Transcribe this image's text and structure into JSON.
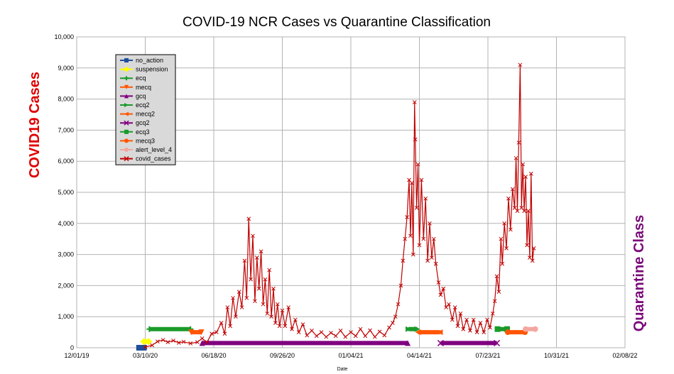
{
  "chart_data": {
    "type": "line",
    "title": "COVID-19 NCR Cases vs Quarantine Classification",
    "xlabel": "Date",
    "ylabel": "COVID19 Cases",
    "y2label": "Quarantine Class",
    "x_range": [
      "2019-12-01",
      "2022-02-08"
    ],
    "ylim": [
      0,
      10000
    ],
    "x_ticks": [
      "12/01/19",
      "03/10/20",
      "06/18/20",
      "09/26/20",
      "01/04/21",
      "04/14/21",
      "07/23/21",
      "10/31/21",
      "02/08/22"
    ],
    "y_ticks": [
      "0",
      "1,000",
      "2,000",
      "3,000",
      "4,000",
      "5,000",
      "6,000",
      "7,000",
      "8,000",
      "9,000",
      "10,000"
    ],
    "grid": true,
    "legend_position": "top-left",
    "legend": [
      "no_action",
      "suspension",
      "ecq",
      "mecq",
      "gcq",
      "ecq2",
      "mecq2",
      "gcq2",
      "ecq3",
      "mecq3",
      "alert_level_4",
      "covid_cases"
    ],
    "quarantine_series": [
      {
        "name": "no_action",
        "color": "#1f4e9c",
        "marker": "square",
        "start": "2020-03-01",
        "end": "2020-03-08",
        "level": 0
      },
      {
        "name": "suspension",
        "color": "#ffff00",
        "marker": "diamond",
        "start": "2020-03-08",
        "end": "2020-03-15",
        "level": 200
      },
      {
        "name": "ecq",
        "color": "#1a9a2a",
        "marker": "plus",
        "start": "2020-03-16",
        "end": "2020-05-15",
        "level": 600
      },
      {
        "name": "mecq",
        "color": "#ff5500",
        "marker": "triangle-down",
        "start": "2020-05-16",
        "end": "2020-05-31",
        "level": 500
      },
      {
        "name": "gcq",
        "color": "#800080",
        "marker": "triangle-up",
        "start": "2020-06-01",
        "end": "2021-03-28",
        "level": 150
      },
      {
        "name": "ecq2",
        "color": "#1a9a2a",
        "marker": "triangle-right",
        "start": "2021-03-29",
        "end": "2021-04-11",
        "level": 600
      },
      {
        "name": "mecq2",
        "color": "#ff5500",
        "marker": "triangle-left",
        "start": "2021-04-12",
        "end": "2021-05-14",
        "level": 500
      },
      {
        "name": "gcq2",
        "color": "#800080",
        "marker": "x",
        "start": "2021-05-15",
        "end": "2021-08-05",
        "level": 150
      },
      {
        "name": "ecq3",
        "color": "#1a9a2a",
        "marker": "square",
        "start": "2021-08-06",
        "end": "2021-08-20",
        "level": 600
      },
      {
        "name": "mecq3",
        "color": "#ff5500",
        "marker": "circle",
        "start": "2021-08-21",
        "end": "2021-09-15",
        "level": 500
      },
      {
        "name": "alert_level_4",
        "color": "#f4a6a0",
        "marker": "star",
        "start": "2021-09-16",
        "end": "2021-09-30",
        "level": 600
      }
    ],
    "covid_cases": {
      "name": "covid_cases",
      "color": "#c00000",
      "marker": "x",
      "points": [
        [
          "2020-03-10",
          20
        ],
        [
          "2020-03-20",
          80
        ],
        [
          "2020-03-28",
          200
        ],
        [
          "2020-04-05",
          250
        ],
        [
          "2020-04-12",
          180
        ],
        [
          "2020-04-20",
          230
        ],
        [
          "2020-04-28",
          160
        ],
        [
          "2020-05-05",
          190
        ],
        [
          "2020-05-15",
          140
        ],
        [
          "2020-05-25",
          180
        ],
        [
          "2020-06-01",
          300
        ],
        [
          "2020-06-08",
          180
        ],
        [
          "2020-06-15",
          450
        ],
        [
          "2020-06-22",
          500
        ],
        [
          "2020-06-29",
          800
        ],
        [
          "2020-07-04",
          450
        ],
        [
          "2020-07-08",
          1300
        ],
        [
          "2020-07-12",
          700
        ],
        [
          "2020-07-16",
          1600
        ],
        [
          "2020-07-20",
          1000
        ],
        [
          "2020-07-25",
          1800
        ],
        [
          "2020-07-29",
          1300
        ],
        [
          "2020-08-02",
          2800
        ],
        [
          "2020-08-05",
          1600
        ],
        [
          "2020-08-08",
          4150
        ],
        [
          "2020-08-11",
          2200
        ],
        [
          "2020-08-14",
          3600
        ],
        [
          "2020-08-17",
          1500
        ],
        [
          "2020-08-20",
          2900
        ],
        [
          "2020-08-23",
          1900
        ],
        [
          "2020-08-26",
          3100
        ],
        [
          "2020-08-29",
          1400
        ],
        [
          "2020-09-01",
          2200
        ],
        [
          "2020-09-04",
          1100
        ],
        [
          "2020-09-07",
          2500
        ],
        [
          "2020-09-10",
          1000
        ],
        [
          "2020-09-13",
          1900
        ],
        [
          "2020-09-16",
          800
        ],
        [
          "2020-09-19",
          1400
        ],
        [
          "2020-09-22",
          700
        ],
        [
          "2020-09-26",
          1200
        ],
        [
          "2020-09-30",
          700
        ],
        [
          "2020-10-05",
          1300
        ],
        [
          "2020-10-10",
          600
        ],
        [
          "2020-10-15",
          900
        ],
        [
          "2020-10-20",
          500
        ],
        [
          "2020-10-26",
          750
        ],
        [
          "2020-11-01",
          400
        ],
        [
          "2020-11-08",
          550
        ],
        [
          "2020-11-15",
          380
        ],
        [
          "2020-11-22",
          500
        ],
        [
          "2020-11-29",
          350
        ],
        [
          "2020-12-06",
          480
        ],
        [
          "2020-12-13",
          380
        ],
        [
          "2020-12-20",
          550
        ],
        [
          "2020-12-27",
          350
        ],
        [
          "2021-01-04",
          500
        ],
        [
          "2021-01-11",
          380
        ],
        [
          "2021-01-18",
          600
        ],
        [
          "2021-01-25",
          380
        ],
        [
          "2021-02-01",
          560
        ],
        [
          "2021-02-08",
          350
        ],
        [
          "2021-02-15",
          520
        ],
        [
          "2021-02-22",
          400
        ],
        [
          "2021-03-01",
          650
        ],
        [
          "2021-03-06",
          800
        ],
        [
          "2021-03-10",
          1000
        ],
        [
          "2021-03-14",
          1400
        ],
        [
          "2021-03-18",
          2000
        ],
        [
          "2021-03-21",
          2800
        ],
        [
          "2021-03-24",
          3500
        ],
        [
          "2021-03-27",
          4200
        ],
        [
          "2021-03-30",
          5400
        ],
        [
          "2021-04-01",
          3600
        ],
        [
          "2021-04-03",
          5300
        ],
        [
          "2021-04-05",
          3000
        ],
        [
          "2021-04-07",
          7900
        ],
        [
          "2021-04-08",
          6700
        ],
        [
          "2021-04-10",
          4500
        ],
        [
          "2021-04-12",
          5900
        ],
        [
          "2021-04-14",
          3300
        ],
        [
          "2021-04-17",
          5400
        ],
        [
          "2021-04-20",
          3500
        ],
        [
          "2021-04-23",
          4800
        ],
        [
          "2021-04-26",
          2800
        ],
        [
          "2021-04-29",
          4000
        ],
        [
          "2021-05-02",
          2900
        ],
        [
          "2021-05-05",
          3500
        ],
        [
          "2021-05-08",
          2700
        ],
        [
          "2021-05-12",
          2100
        ],
        [
          "2021-05-15",
          1700
        ],
        [
          "2021-05-19",
          1900
        ],
        [
          "2021-05-23",
          1300
        ],
        [
          "2021-05-27",
          1400
        ],
        [
          "2021-06-01",
          900
        ],
        [
          "2021-06-05",
          1300
        ],
        [
          "2021-06-09",
          700
        ],
        [
          "2021-06-13",
          1100
        ],
        [
          "2021-06-17",
          600
        ],
        [
          "2021-06-22",
          900
        ],
        [
          "2021-06-27",
          550
        ],
        [
          "2021-07-02",
          900
        ],
        [
          "2021-07-07",
          500
        ],
        [
          "2021-07-12",
          800
        ],
        [
          "2021-07-17",
          500
        ],
        [
          "2021-07-22",
          900
        ],
        [
          "2021-07-26",
          650
        ],
        [
          "2021-07-30",
          1100
        ],
        [
          "2021-08-02",
          1500
        ],
        [
          "2021-08-05",
          2300
        ],
        [
          "2021-08-08",
          1800
        ],
        [
          "2021-08-11",
          3500
        ],
        [
          "2021-08-13",
          2700
        ],
        [
          "2021-08-16",
          4000
        ],
        [
          "2021-08-19",
          3200
        ],
        [
          "2021-08-22",
          4800
        ],
        [
          "2021-08-25",
          3800
        ],
        [
          "2021-08-28",
          5100
        ],
        [
          "2021-08-31",
          4500
        ],
        [
          "2021-09-02",
          6100
        ],
        [
          "2021-09-04",
          4400
        ],
        [
          "2021-09-06",
          6600
        ],
        [
          "2021-09-08",
          9100
        ],
        [
          "2021-09-10",
          4500
        ],
        [
          "2021-09-12",
          5900
        ],
        [
          "2021-09-14",
          4400
        ],
        [
          "2021-09-16",
          5500
        ],
        [
          "2021-09-18",
          3300
        ],
        [
          "2021-09-20",
          4400
        ],
        [
          "2021-09-22",
          2900
        ],
        [
          "2021-09-24",
          5600
        ],
        [
          "2021-09-26",
          2800
        ],
        [
          "2021-09-28",
          3200
        ]
      ]
    }
  }
}
